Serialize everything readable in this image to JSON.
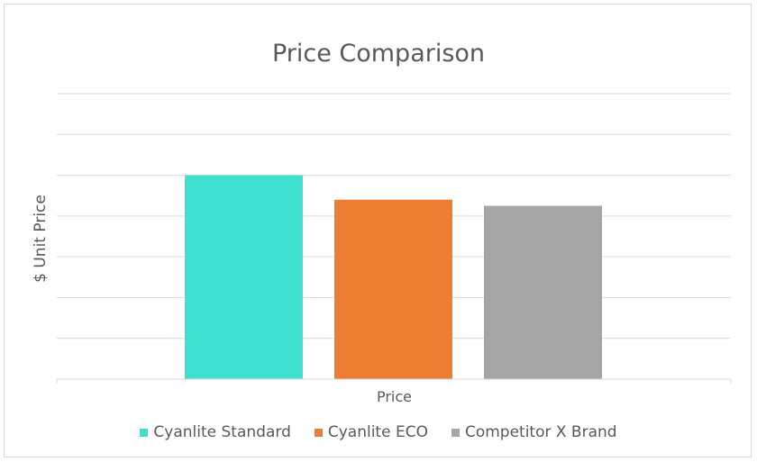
{
  "chart_data": {
    "type": "bar",
    "title": "Price Comparison",
    "xlabel": "Price",
    "ylabel": "$ Unit Price",
    "categories": [
      "Price"
    ],
    "series": [
      {
        "name": "Cyanlite Standard",
        "values": [
          5.0
        ],
        "color": "#40E0D0"
      },
      {
        "name": "Cyanlite ECO",
        "values": [
          4.4
        ],
        "color": "#ED7D31"
      },
      {
        "name": "Competitor X Brand",
        "values": [
          4.25
        ],
        "color": "#A5A5A5"
      }
    ],
    "ylim": [
      0,
      7
    ],
    "grid": true,
    "legend_position": "bottom"
  }
}
